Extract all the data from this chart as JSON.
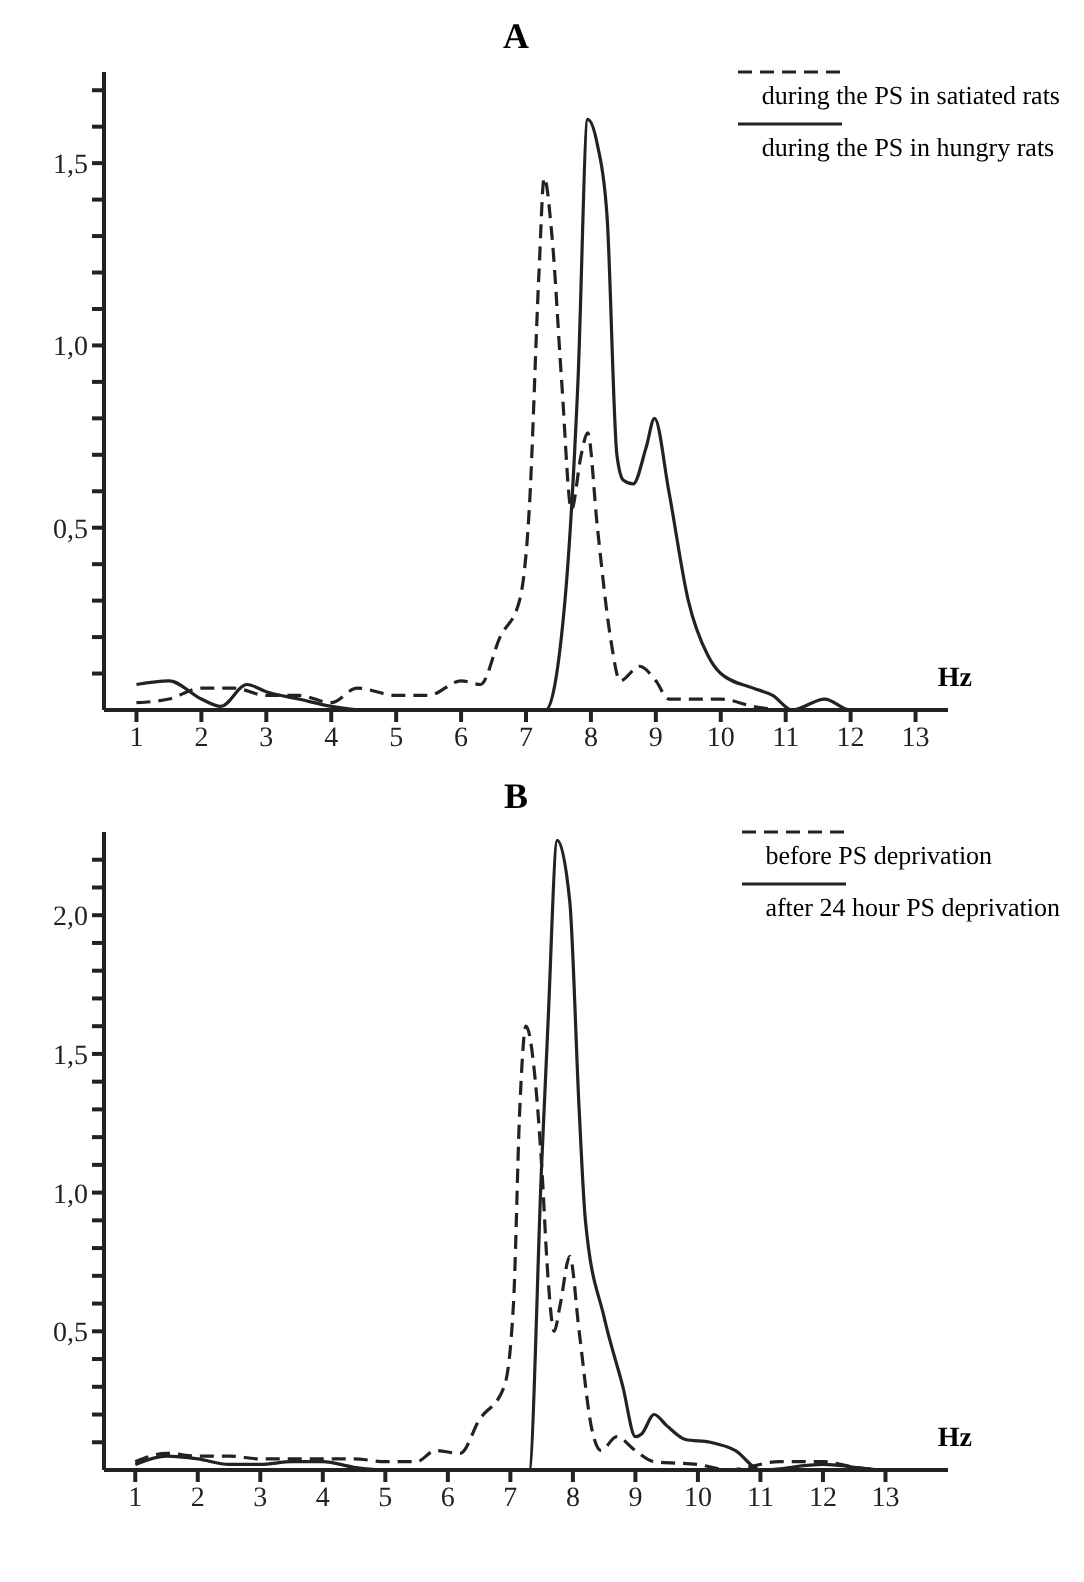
{
  "chart_data": [
    {
      "type": "line",
      "title": "A",
      "xlabel": "Hz",
      "legend": "top right",
      "xlim": [
        0.5,
        13.5
      ],
      "xticks": [
        1,
        2,
        3,
        4,
        5,
        6,
        7,
        8,
        9,
        10,
        11,
        12,
        13
      ],
      "ylim": [
        0,
        1.75
      ],
      "yticks": [
        {
          "value": 0.1,
          "label": null
        },
        {
          "value": 0.2,
          "label": null
        },
        {
          "value": 0.3,
          "label": null
        },
        {
          "value": 0.4,
          "label": null
        },
        {
          "value": 0.5,
          "label": "0,5"
        },
        {
          "value": 0.6,
          "label": null
        },
        {
          "value": 0.7,
          "label": null
        },
        {
          "value": 0.8,
          "label": null
        },
        {
          "value": 0.9,
          "label": null
        },
        {
          "value": 1.0,
          "label": "1,0"
        },
        {
          "value": 1.1,
          "label": null
        },
        {
          "value": 1.2,
          "label": null
        },
        {
          "value": 1.3,
          "label": null
        },
        {
          "value": 1.4,
          "label": null
        },
        {
          "value": 1.5,
          "label": "1,5"
        },
        {
          "value": 1.6,
          "label": null
        },
        {
          "value": 1.7,
          "label": null
        }
      ],
      "series": [
        {
          "name": "during the PS in satiated rats",
          "color": "#222222",
          "line_style": "dashed",
          "x": [
            1,
            1.5,
            2,
            2.5,
            3,
            3.5,
            4,
            4.4,
            5,
            5.5,
            6,
            6.3,
            6.6,
            6.9,
            7.05,
            7.2,
            7.28,
            7.4,
            7.55,
            7.7,
            7.85,
            7.95,
            8.1,
            8.3,
            8.45,
            8.75,
            9,
            9.2,
            10,
            10.5,
            11,
            12,
            13
          ],
          "values": [
            0.02,
            0.03,
            0.06,
            0.06,
            0.04,
            0.04,
            0.02,
            0.06,
            0.04,
            0.04,
            0.08,
            0.07,
            0.2,
            0.3,
            0.55,
            1.2,
            1.46,
            1.3,
            0.9,
            0.55,
            0.7,
            0.76,
            0.5,
            0.2,
            0.08,
            0.12,
            0.08,
            0.03,
            0.03,
            0.01,
            0,
            0,
            0
          ]
        },
        {
          "name": "during the PS in hungry rats",
          "color": "#222222",
          "line_style": "solid",
          "x": [
            1,
            1.5,
            2,
            2.3,
            2.7,
            3,
            3.5,
            4,
            4.5,
            7.3,
            7.6,
            7.8,
            7.95,
            8.1,
            8.25,
            8.4,
            8.5,
            8.65,
            8.85,
            8.98,
            9.2,
            9.5,
            9.8,
            10,
            10.5,
            10.8,
            11.1,
            11.6,
            12,
            13
          ],
          "values": [
            0.07,
            0.08,
            0.03,
            0.01,
            0.07,
            0.05,
            0.03,
            0.01,
            0,
            0,
            0.3,
            0.9,
            1.62,
            1.55,
            1.35,
            0.7,
            0.63,
            0.62,
            0.72,
            0.8,
            0.6,
            0.3,
            0.15,
            0.1,
            0.06,
            0.04,
            0,
            0.03,
            0,
            0
          ]
        }
      ]
    },
    {
      "type": "line",
      "title": "B",
      "xlabel": "Hz",
      "legend": "top right",
      "xlim": [
        0.5,
        14
      ],
      "xticks": [
        1,
        2,
        3,
        4,
        5,
        6,
        7,
        8,
        9,
        10,
        11,
        12,
        13
      ],
      "ylim": [
        0,
        2.3
      ],
      "yticks": [
        {
          "value": 0.1,
          "label": null
        },
        {
          "value": 0.2,
          "label": null
        },
        {
          "value": 0.3,
          "label": null
        },
        {
          "value": 0.4,
          "label": null
        },
        {
          "value": 0.5,
          "label": "0,5"
        },
        {
          "value": 0.6,
          "label": null
        },
        {
          "value": 0.7,
          "label": null
        },
        {
          "value": 0.8,
          "label": null
        },
        {
          "value": 0.9,
          "label": null
        },
        {
          "value": 1.0,
          "label": "1,0"
        },
        {
          "value": 1.1,
          "label": null
        },
        {
          "value": 1.2,
          "label": null
        },
        {
          "value": 1.3,
          "label": null
        },
        {
          "value": 1.4,
          "label": null
        },
        {
          "value": 1.5,
          "label": "1,5"
        },
        {
          "value": 1.6,
          "label": null
        },
        {
          "value": 1.7,
          "label": null
        },
        {
          "value": 1.8,
          "label": null
        },
        {
          "value": 1.9,
          "label": null
        },
        {
          "value": 2.0,
          "label": "2,0"
        },
        {
          "value": 2.1,
          "label": null
        },
        {
          "value": 2.2,
          "label": null
        }
      ],
      "series": [
        {
          "name": "before PS deprivation",
          "color": "#222222",
          "line_style": "dashed",
          "x": [
            1,
            1.5,
            2,
            2.5,
            3,
            3.5,
            4,
            4.5,
            5,
            5.5,
            5.8,
            6.2,
            6.5,
            6.9,
            7.05,
            7.15,
            7.25,
            7.4,
            7.5,
            7.6,
            7.7,
            7.8,
            7.95,
            8.1,
            8.3,
            8.45,
            8.7,
            9,
            9.3,
            10,
            10.5,
            11.3,
            12,
            12.5,
            13
          ],
          "values": [
            0.03,
            0.06,
            0.05,
            0.05,
            0.04,
            0.04,
            0.04,
            0.04,
            0.03,
            0.03,
            0.07,
            0.06,
            0.18,
            0.3,
            0.6,
            1.3,
            1.6,
            1.4,
            1.1,
            0.7,
            0.5,
            0.6,
            0.77,
            0.5,
            0.15,
            0.07,
            0.12,
            0.07,
            0.03,
            0.02,
            0,
            0.03,
            0.03,
            0.01,
            0
          ]
        },
        {
          "name": "after 24 hour PS deprivation",
          "color": "#222222",
          "line_style": "solid",
          "x": [
            1,
            1.5,
            2,
            2.5,
            3,
            3.5,
            4,
            4.5,
            5,
            7.3,
            7.5,
            7.6,
            7.75,
            7.95,
            8.1,
            8.2,
            8.5,
            8.8,
            9,
            9.1,
            9.3,
            9.5,
            9.8,
            10.2,
            10.6,
            11,
            12,
            13,
            13.9
          ],
          "values": [
            0.02,
            0.05,
            0.04,
            0.02,
            0.02,
            0.03,
            0.03,
            0.01,
            0,
            0,
            1.1,
            1.6,
            2.27,
            2.05,
            1.3,
            0.9,
            0.55,
            0.3,
            0.12,
            0.13,
            0.2,
            0.16,
            0.11,
            0.1,
            0.07,
            0,
            0.02,
            0,
            0
          ]
        }
      ]
    }
  ]
}
